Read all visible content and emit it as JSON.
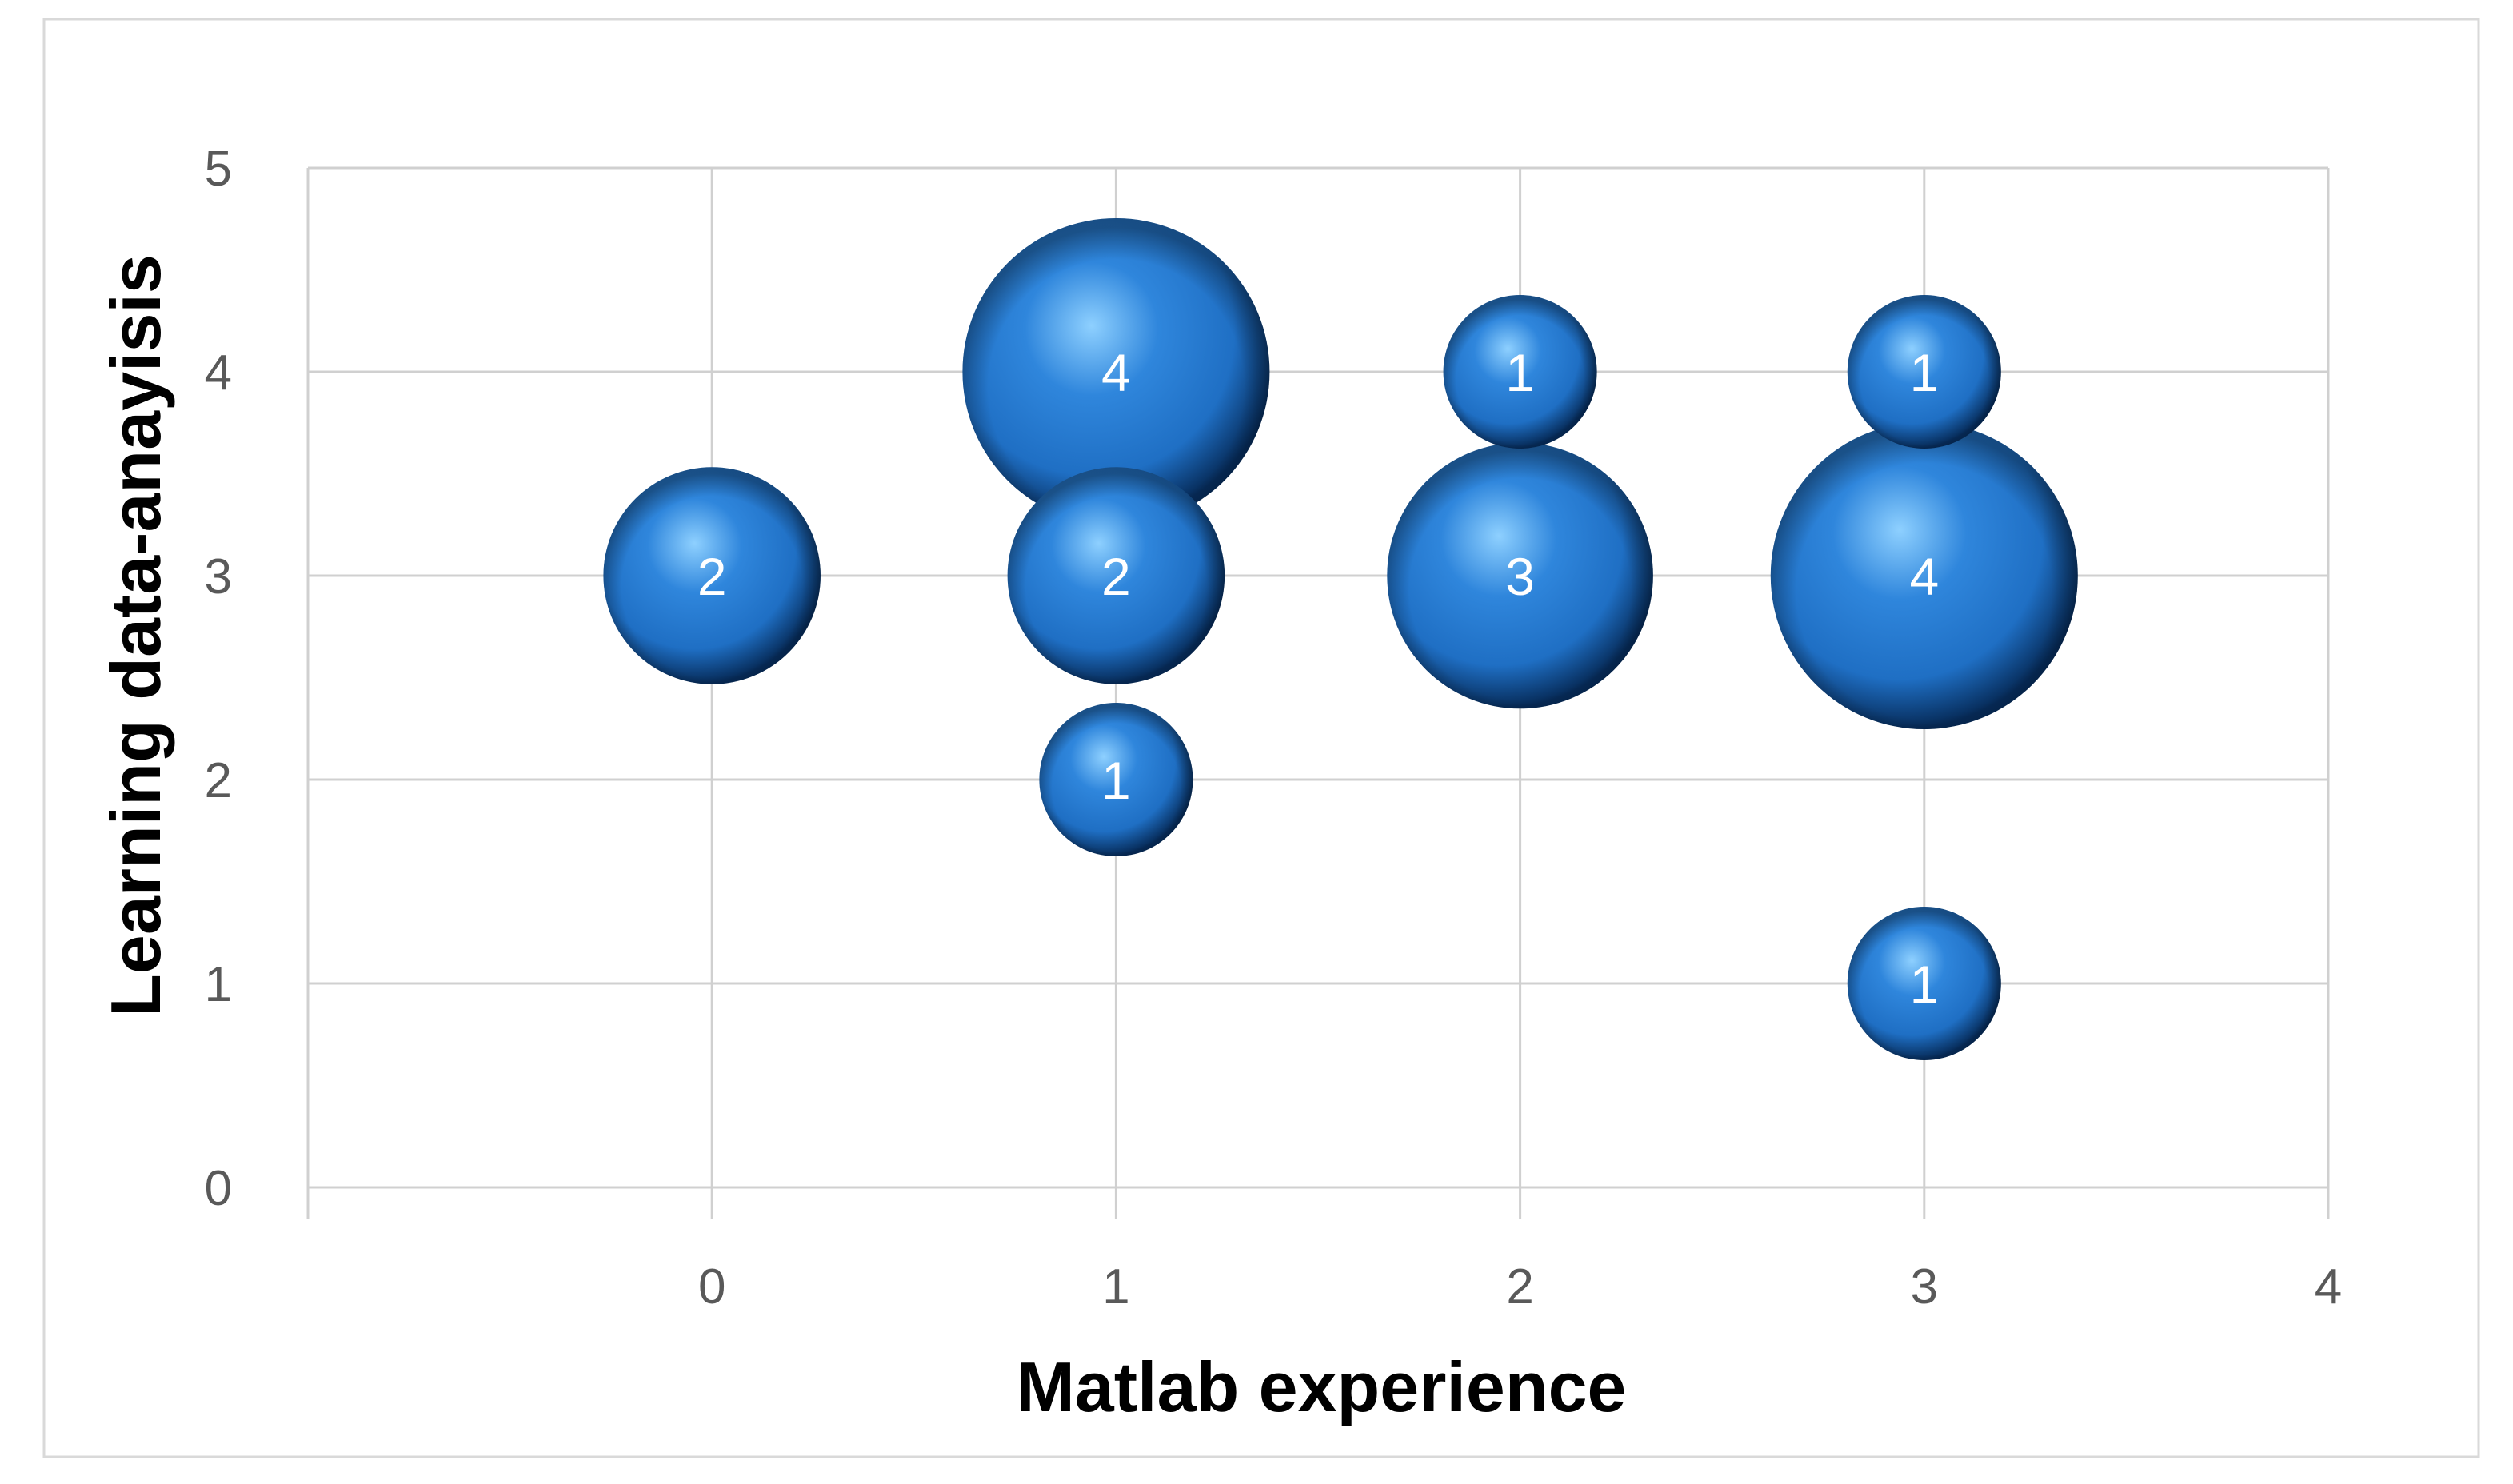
{
  "chart_data": {
    "type": "bubble",
    "title": "",
    "xlabel": "Matlab experience",
    "ylabel": "Learning data-anayisis",
    "xlim": [
      -1,
      4
    ],
    "ylim": [
      0,
      5
    ],
    "x_ticks": [
      "0",
      "1",
      "2",
      "3",
      "4"
    ],
    "y_ticks": [
      "0",
      "1",
      "2",
      "3",
      "4",
      "5"
    ],
    "grid": true,
    "legend": false,
    "colors": {
      "bubble_light": "#8ed0ff",
      "bubble_mid": "#1f6fc4",
      "bubble_dark": "#062a57",
      "grid": "#d0d0d0",
      "frame": "#d9d9d9"
    },
    "points": [
      {
        "x": 0,
        "y": 3,
        "size": 2,
        "label": "2"
      },
      {
        "x": 1,
        "y": 4,
        "size": 4,
        "label": "4"
      },
      {
        "x": 1,
        "y": 3,
        "size": 2,
        "label": "2"
      },
      {
        "x": 1,
        "y": 2,
        "size": 1,
        "label": "1"
      },
      {
        "x": 2,
        "y": 4,
        "size": 1,
        "label": "1"
      },
      {
        "x": 2,
        "y": 3,
        "size": 3,
        "label": "3"
      },
      {
        "x": 3,
        "y": 4,
        "size": 1,
        "label": "1"
      },
      {
        "x": 3,
        "y": 3,
        "size": 4,
        "label": "4"
      },
      {
        "x": 3,
        "y": 1,
        "size": 1,
        "label": "1"
      }
    ]
  }
}
